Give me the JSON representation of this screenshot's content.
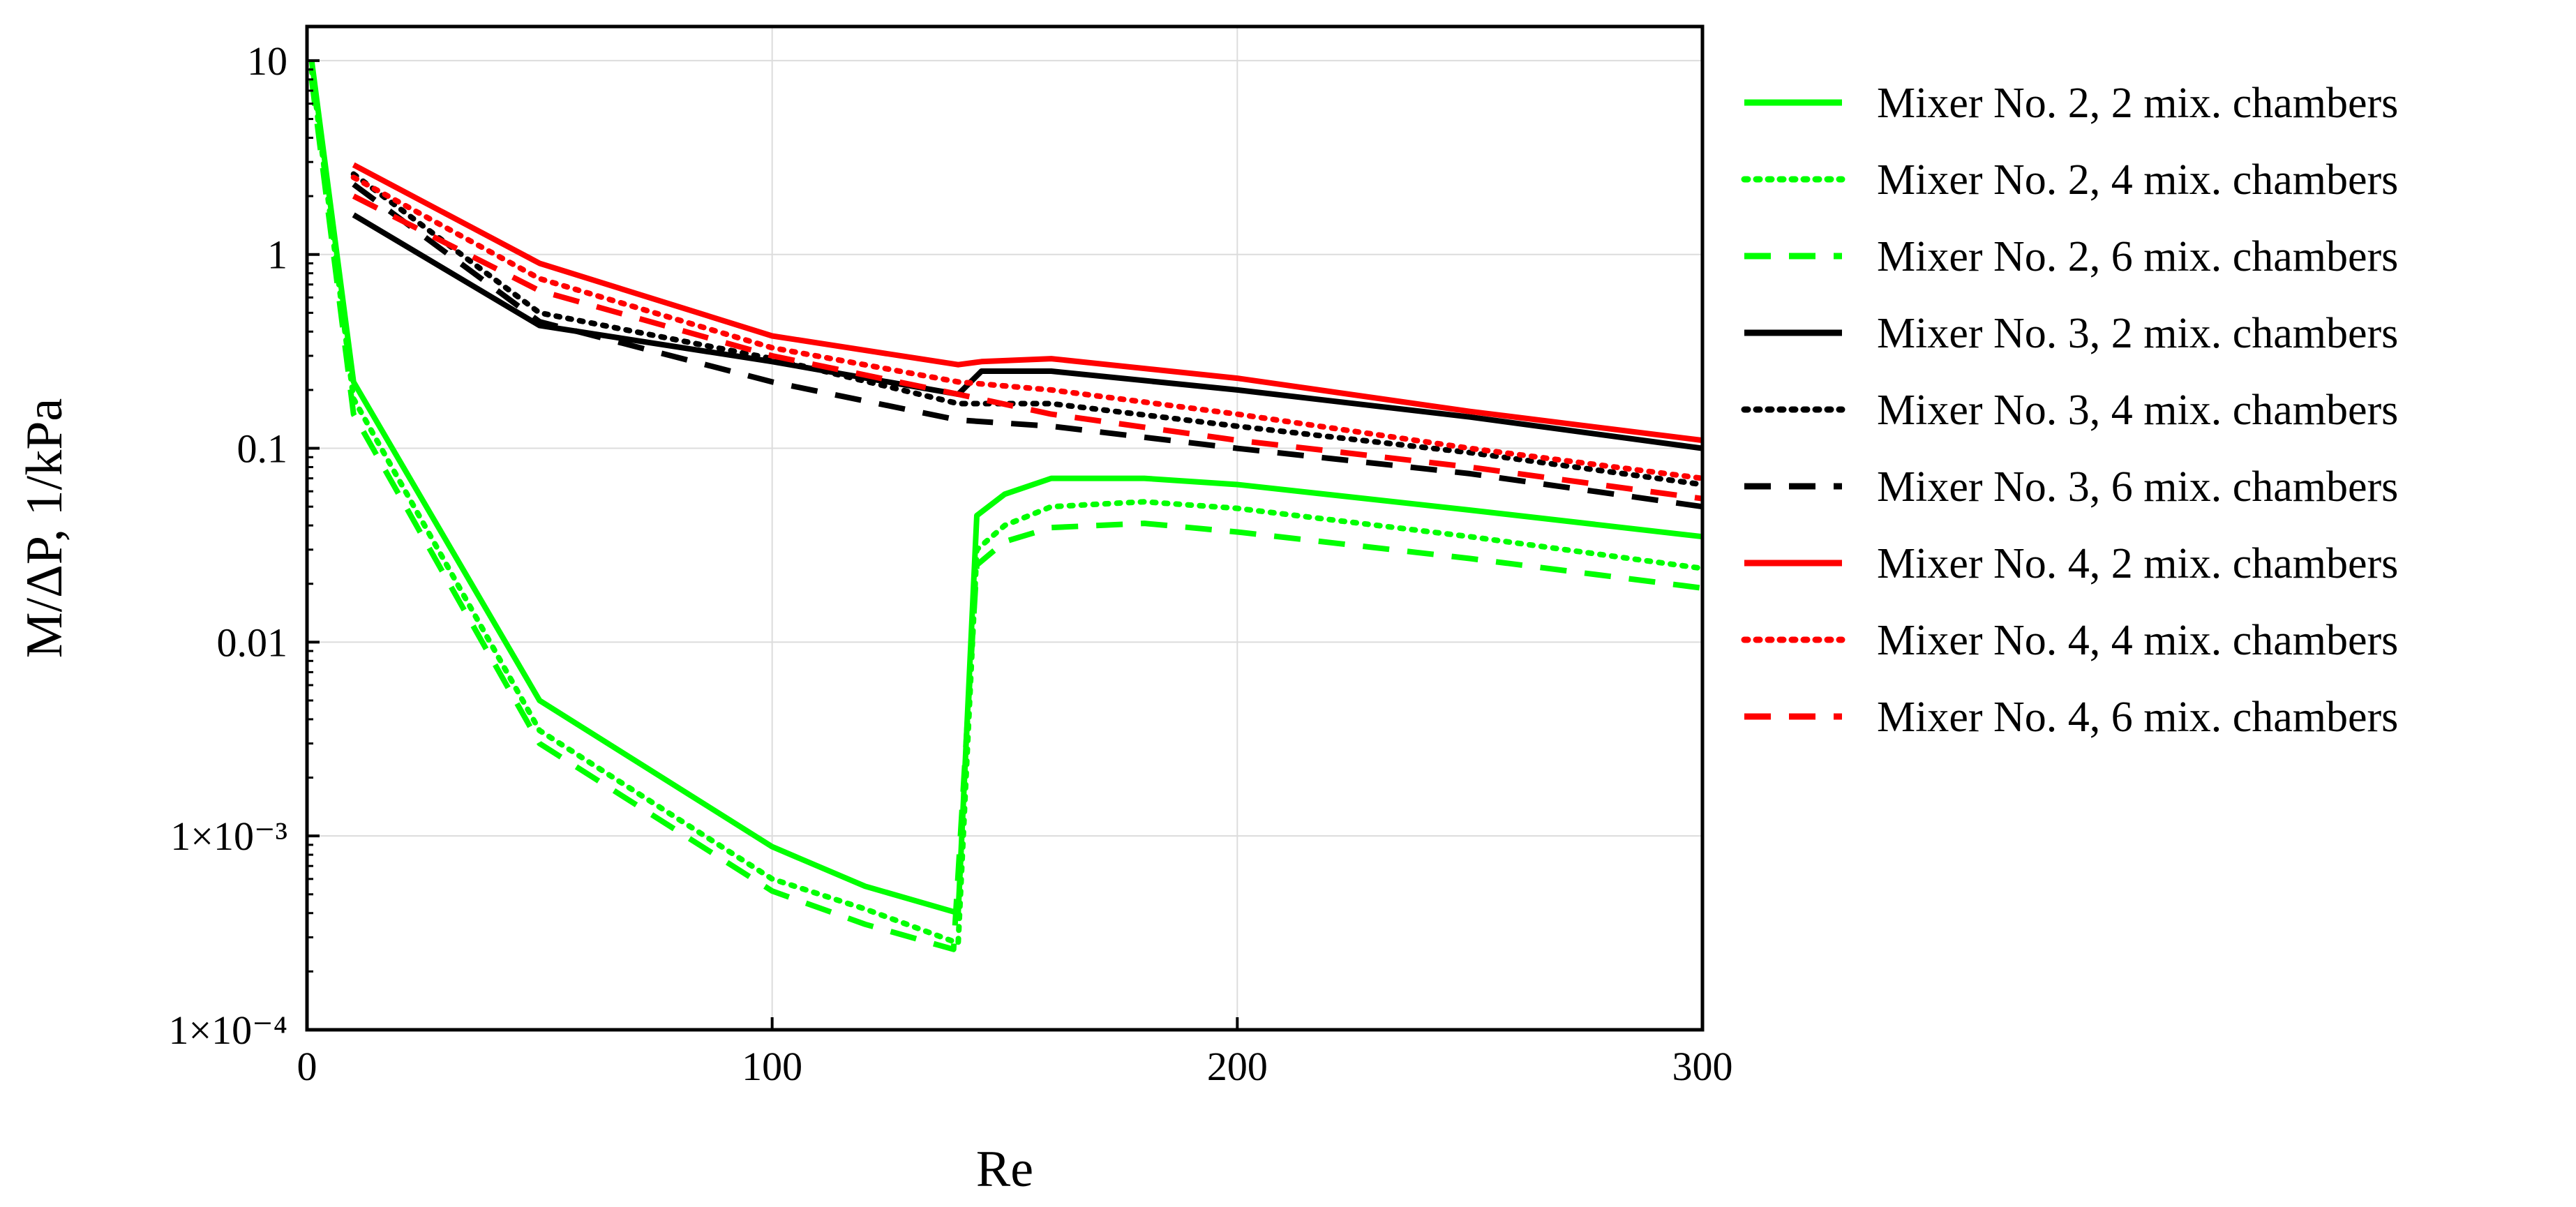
{
  "chart_data": {
    "type": "line",
    "title": "",
    "xlabel": "Re",
    "ylabel": "M/ΔP, 1/kPa",
    "xlim": [
      0,
      300
    ],
    "ylim": [
      0.0001,
      15
    ],
    "yscale": "log",
    "grid": true,
    "legend_position": "right",
    "x_ticks": [
      {
        "value": 0,
        "label": "0"
      },
      {
        "value": 100,
        "label": "100"
      },
      {
        "value": 200,
        "label": "200"
      },
      {
        "value": 300,
        "label": "300"
      }
    ],
    "y_ticks": [
      {
        "value": 10,
        "label": "10"
      },
      {
        "value": 1,
        "label": "1"
      },
      {
        "value": 0.1,
        "label": "0.1"
      },
      {
        "value": 0.01,
        "label": "0.01"
      },
      {
        "value": 0.001,
        "label": "1×10⁻³"
      },
      {
        "value": 0.0001,
        "label": "1×10⁻⁴"
      }
    ],
    "series": [
      {
        "name": "Mixer No. 2, 2 mix. chambers",
        "color": "#00ff00",
        "dash": "solid",
        "x": [
          1,
          10,
          50,
          100,
          120,
          140,
          144,
          150,
          160,
          180,
          200,
          250,
          300
        ],
        "y": [
          10,
          0.22,
          0.005,
          0.00088,
          0.00055,
          0.0004,
          0.045,
          0.058,
          0.07,
          0.07,
          0.065,
          0.048,
          0.035
        ]
      },
      {
        "name": "Mixer No. 2, 4 mix. chambers",
        "color": "#00ff00",
        "dash": "dot",
        "x": [
          1,
          10,
          50,
          100,
          120,
          140,
          144,
          150,
          160,
          180,
          200,
          250,
          300
        ],
        "y": [
          9,
          0.18,
          0.0035,
          0.0006,
          0.00042,
          0.00028,
          0.03,
          0.04,
          0.05,
          0.053,
          0.049,
          0.035,
          0.024
        ]
      },
      {
        "name": "Mixer No. 2, 6 mix. chambers",
        "color": "#00ff00",
        "dash": "dash",
        "x": [
          1,
          10,
          50,
          100,
          120,
          139,
          144,
          150,
          160,
          180,
          200,
          250,
          300
        ],
        "y": [
          8,
          0.15,
          0.003,
          0.00052,
          0.00035,
          0.00026,
          0.025,
          0.033,
          0.039,
          0.041,
          0.037,
          0.027,
          0.019
        ]
      },
      {
        "name": "Mixer No. 3, 2 mix. chambers",
        "color": "#000000",
        "dash": "solid",
        "x": [
          10,
          50,
          100,
          140,
          145,
          160,
          200,
          250,
          300
        ],
        "y": [
          1.6,
          0.43,
          0.28,
          0.19,
          0.25,
          0.25,
          0.2,
          0.145,
          0.1
        ]
      },
      {
        "name": "Mixer No. 3, 4 mix. chambers",
        "color": "#000000",
        "dash": "dot",
        "x": [
          10,
          50,
          100,
          140,
          160,
          200,
          250,
          300
        ],
        "y": [
          2.6,
          0.5,
          0.29,
          0.17,
          0.17,
          0.13,
          0.095,
          0.065
        ]
      },
      {
        "name": "Mixer No. 3, 6 mix. chambers",
        "color": "#000000",
        "dash": "dash",
        "x": [
          10,
          50,
          100,
          140,
          160,
          200,
          250,
          300
        ],
        "y": [
          2.3,
          0.45,
          0.22,
          0.14,
          0.13,
          0.1,
          0.074,
          0.05
        ]
      },
      {
        "name": "Mixer No. 4, 2 mix. chambers",
        "color": "#ff0000",
        "dash": "solid",
        "x": [
          10,
          50,
          100,
          140,
          145,
          160,
          200,
          250,
          300
        ],
        "y": [
          2.9,
          0.9,
          0.38,
          0.27,
          0.28,
          0.29,
          0.23,
          0.155,
          0.11
        ]
      },
      {
        "name": "Mixer No. 4, 4 mix. chambers",
        "color": "#ff0000",
        "dash": "dot",
        "x": [
          10,
          50,
          100,
          140,
          160,
          200,
          250,
          300
        ],
        "y": [
          2.5,
          0.75,
          0.33,
          0.22,
          0.2,
          0.15,
          0.1,
          0.07
        ]
      },
      {
        "name": "Mixer No. 4, 6 mix. chambers",
        "color": "#ff0000",
        "dash": "dash",
        "x": [
          10,
          50,
          100,
          140,
          160,
          200,
          250,
          300
        ],
        "y": [
          2.0,
          0.65,
          0.3,
          0.19,
          0.15,
          0.11,
          0.08,
          0.055
        ]
      }
    ]
  }
}
